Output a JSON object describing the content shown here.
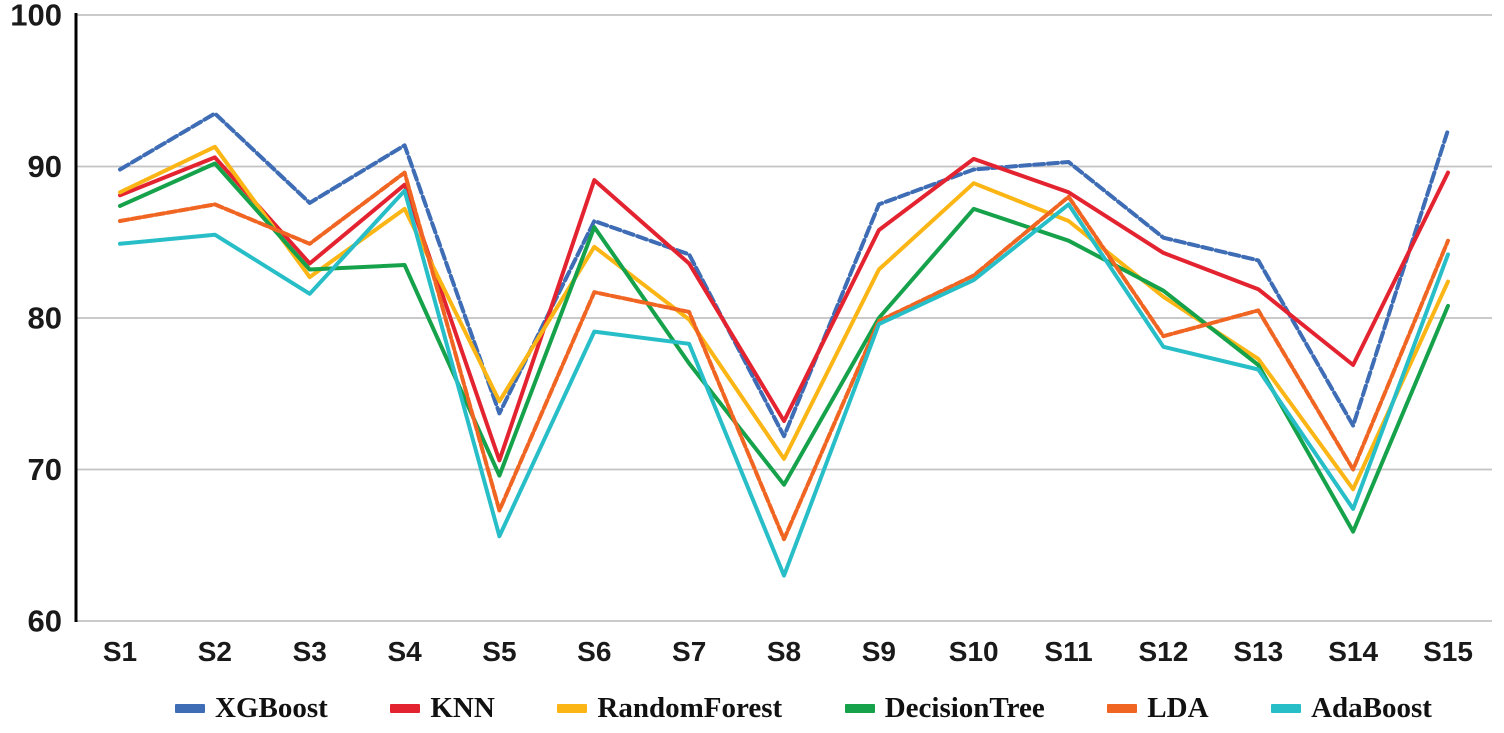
{
  "chart_data": {
    "type": "line",
    "title": "",
    "xlabel": "",
    "ylabel": "",
    "categories": [
      "S1",
      "S2",
      "S3",
      "S4",
      "S5",
      "S6",
      "S7",
      "S8",
      "S9",
      "S10",
      "S11",
      "S12",
      "S13",
      "S14",
      "S15"
    ],
    "ylim": [
      60,
      100
    ],
    "yticks": [
      100,
      90,
      80,
      70,
      60
    ],
    "grid": "horizontal",
    "legend_position": "bottom",
    "series": [
      {
        "name": "XGBoost",
        "color": "#3e6db5",
        "line_style": "dashed",
        "dash": "10 4",
        "values": [
          89.8,
          93.5,
          87.6,
          91.4,
          73.7,
          86.4,
          84.2,
          72.2,
          87.5,
          89.8,
          90.3,
          85.3,
          83.8,
          72.9,
          92.4
        ]
      },
      {
        "name": "KNN",
        "color": "#e32430",
        "line_style": "solid",
        "dash": null,
        "values": [
          88.1,
          90.6,
          83.6,
          88.8,
          70.6,
          89.1,
          83.6,
          73.2,
          85.8,
          90.5,
          88.3,
          84.3,
          81.9,
          76.9,
          89.6
        ]
      },
      {
        "name": "RandomForest",
        "color": "#fbb616",
        "line_style": "solid",
        "dash": null,
        "values": [
          88.3,
          91.3,
          82.7,
          87.2,
          74.5,
          84.7,
          79.9,
          70.7,
          83.2,
          88.9,
          86.4,
          81.4,
          77.3,
          68.7,
          82.4
        ]
      },
      {
        "name": "DecisionTree",
        "color": "#15a24a",
        "line_style": "solid",
        "dash": null,
        "values": [
          87.4,
          90.2,
          83.2,
          83.5,
          69.6,
          86.0,
          77.0,
          69.0,
          80.0,
          87.2,
          85.1,
          81.8,
          76.9,
          65.9,
          80.8
        ]
      },
      {
        "name": "LDA",
        "color": "#f06522",
        "line_style": "dashed",
        "dash": "9 3",
        "values": [
          86.4,
          87.5,
          84.9,
          89.6,
          67.3,
          81.7,
          80.4,
          65.4,
          79.8,
          82.8,
          88.0,
          78.8,
          80.5,
          70.0,
          85.1
        ]
      },
      {
        "name": "AdaBoost",
        "color": "#27bec8",
        "line_style": "solid",
        "dash": null,
        "values": [
          84.9,
          85.5,
          81.6,
          88.4,
          65.6,
          79.1,
          78.3,
          63.0,
          79.6,
          82.5,
          87.5,
          78.1,
          76.6,
          67.4,
          84.2
        ]
      }
    ]
  },
  "axes": {
    "y_tick_labels": [
      "100",
      "90",
      "80",
      "70",
      "60"
    ],
    "x_tick_labels": [
      "S1",
      "S2",
      "S3",
      "S4",
      "S5",
      "S6",
      "S7",
      "S8",
      "S9",
      "S10",
      "S11",
      "S12",
      "S13",
      "S14",
      "S15"
    ]
  },
  "colors": {
    "background": "#ffffff",
    "gridline": "#c3c3c3",
    "axis_line": "#000000",
    "tick_text": "#1a1a1a"
  }
}
